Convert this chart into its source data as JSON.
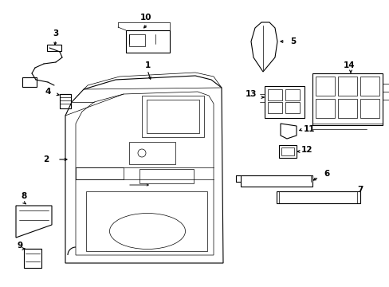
{
  "background_color": "#ffffff",
  "line_color": "#000000",
  "lw_main": 0.8,
  "lw_thin": 0.5,
  "font_size": 7.5,
  "figsize": [
    4.89,
    3.6
  ],
  "dpi": 100
}
